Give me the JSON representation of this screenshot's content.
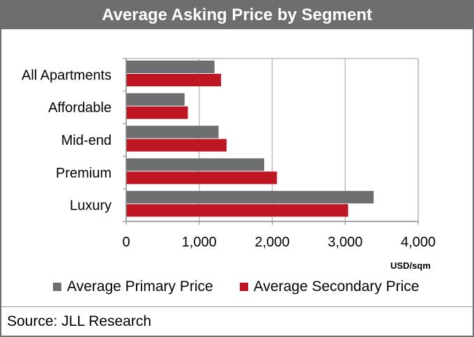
{
  "chart_data": {
    "type": "bar",
    "orientation": "horizontal",
    "title": "Average Asking Price by Segment",
    "categories": [
      "All Apartments",
      "Affordable",
      "Mid-end",
      "Premium",
      "Luxury"
    ],
    "series": [
      {
        "name": "Average Primary Price",
        "color": "#6d6e70",
        "values": [
          1210,
          800,
          1265,
          1890,
          3390
        ]
      },
      {
        "name": "Average Secondary Price",
        "color": "#be1622",
        "values": [
          1300,
          845,
          1375,
          2065,
          3040
        ]
      }
    ],
    "xlabel": "USD/sqm",
    "xlim": [
      0,
      4000
    ],
    "xticks": [
      "0",
      "1,000",
      "2,000",
      "3,000",
      "4,000"
    ],
    "grid": true,
    "legend": "bottom",
    "source": "Source: JLL Research"
  }
}
